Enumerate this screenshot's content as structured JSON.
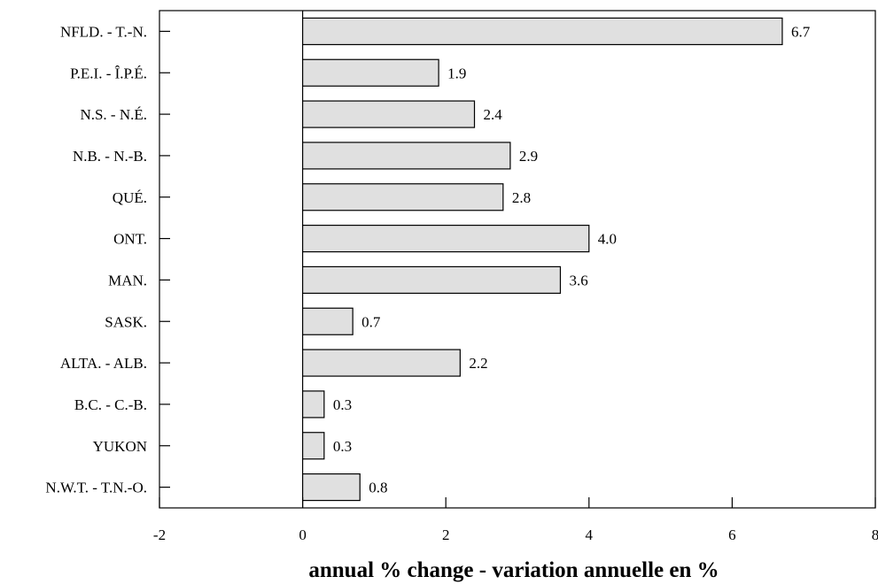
{
  "chart_data": {
    "type": "bar",
    "orientation": "horizontal",
    "categories": [
      "NFLD. - T.-N.",
      "P.E.I. - Î.P.É.",
      "N.S. - N.É.",
      "N.B. - N.-B.",
      "QUÉ.",
      "ONT.",
      "MAN.",
      "SASK.",
      "ALTA. - ALB.",
      "B.C. - C.-B.",
      "YUKON",
      "N.W.T. - T.N.-O."
    ],
    "values": [
      6.7,
      1.9,
      2.4,
      2.9,
      2.8,
      4.0,
      3.6,
      0.7,
      2.2,
      0.3,
      0.3,
      0.8
    ],
    "data_labels": [
      "6.7",
      "1.9",
      "2.4",
      "2.9",
      "2.8",
      "4.0",
      "3.6",
      "0.7",
      "2.2",
      "0.3",
      "0.3",
      "0.8"
    ],
    "xlabel": "annual % change - variation annuelle en %",
    "ylabel": "",
    "title": "",
    "xlim": [
      -2,
      8
    ],
    "xticks": [
      -2,
      0,
      2,
      4,
      6,
      8
    ],
    "grid": false,
    "bar_color": "#e0e0e0",
    "bar_edge_color": "#000000"
  }
}
